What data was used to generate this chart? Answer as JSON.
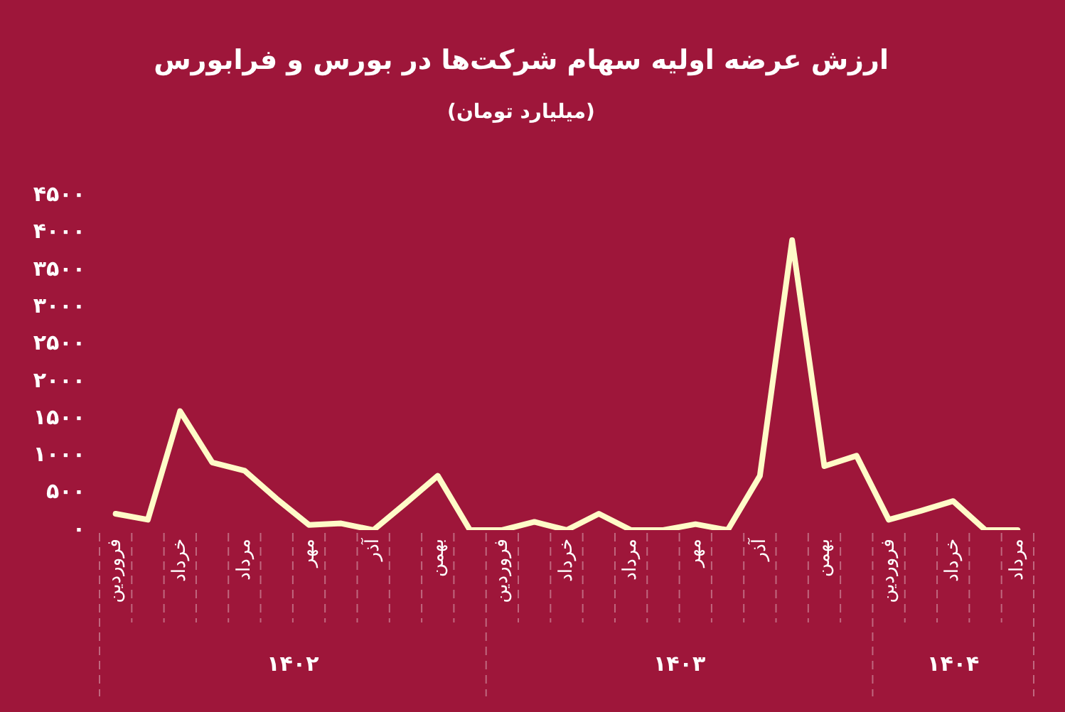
{
  "chart_data": {
    "type": "line",
    "title": "ارزش عرضه اولیه سهام شرکت‌ها در بورس و فرابورس",
    "subtitle": "(میلیارد تومان)",
    "categories": [
      "فروردین",
      null,
      "خرداد",
      null,
      "مرداد",
      null,
      "مهر",
      null,
      "آذر",
      null,
      "بهمن",
      null,
      "فروردین",
      null,
      "خرداد",
      null,
      "مرداد",
      null,
      "مهر",
      null,
      "آذر",
      null,
      "بهمن",
      null,
      "فروردین",
      null,
      "خرداد",
      null,
      "مرداد"
    ],
    "series": [
      {
        "color": "#fffbc8",
        "values": [
          220,
          140,
          1600,
          910,
          800,
          420,
          70,
          90,
          0,
          360,
          730,
          0,
          0,
          110,
          0,
          220,
          0,
          0,
          80,
          0,
          730,
          3900,
          860,
          1000,
          140,
          260,
          390,
          0,
          0
        ]
      }
    ],
    "ylim": [
      0,
      4500
    ],
    "yticks": [
      {
        "value": 0,
        "label": "۰"
      },
      {
        "value": 500,
        "label": "۵۰۰"
      },
      {
        "value": 1000,
        "label": "۱۰۰۰"
      },
      {
        "value": 1500,
        "label": "۱۵۰۰"
      },
      {
        "value": 2000,
        "label": "۲۰۰۰"
      },
      {
        "value": 2500,
        "label": "۲۵۰۰"
      },
      {
        "value": 3000,
        "label": "۳۰۰۰"
      },
      {
        "value": 3500,
        "label": "۳۵۰۰"
      },
      {
        "value": 4000,
        "label": "۴۰۰۰"
      },
      {
        "value": 4500,
        "label": "۴۵۰۰"
      }
    ],
    "annotations": [
      "۱۴۰۲",
      "۱۴۰۳",
      "۱۴۰۴"
    ],
    "grid": false,
    "legend": false,
    "marker": "none",
    "line_style": "solid"
  }
}
